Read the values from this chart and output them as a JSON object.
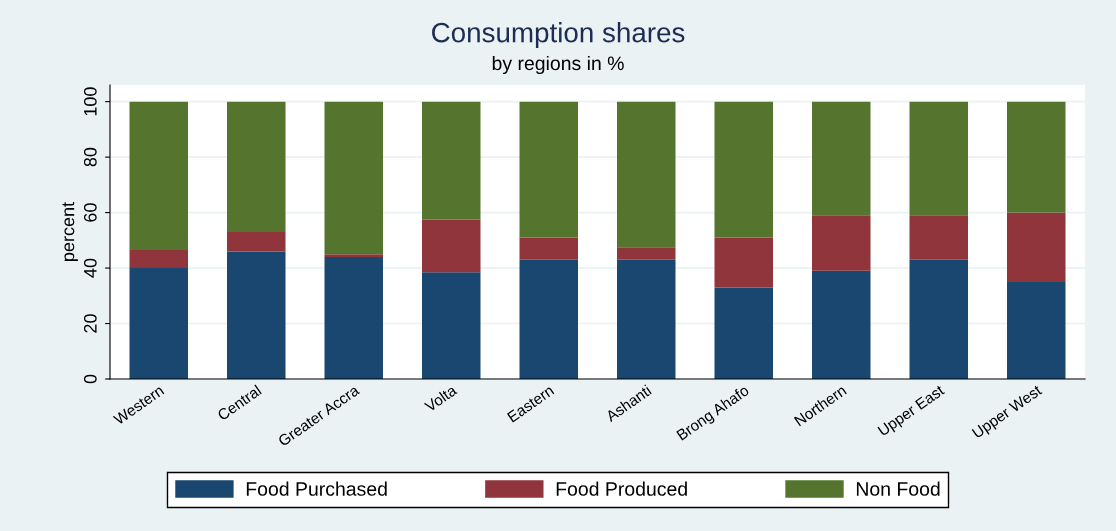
{
  "chart_data": {
    "type": "bar",
    "title": "Consumption shares",
    "subtitle": "by regions in %",
    "ylabel": "percent",
    "categories": [
      "Western",
      "Central",
      "Greater Accra",
      "Volta",
      "Eastern",
      "Ashanti",
      "Brong Ahafo",
      "Northern",
      "Upper East",
      "Upper West"
    ],
    "stacked": true,
    "series": [
      {
        "name": "Food Purchased",
        "color": "#1a476f",
        "values": [
          40,
          46,
          44,
          38.5,
          43,
          43,
          33,
          39,
          43,
          35
        ]
      },
      {
        "name": "Food Produced",
        "color": "#90353b",
        "values": [
          6.5,
          7,
          1,
          19,
          8,
          4.5,
          18,
          20,
          16,
          25
        ]
      },
      {
        "name": "Non Food",
        "color": "#55752f",
        "values": [
          53.5,
          47,
          55,
          42.5,
          49,
          52.5,
          49,
          41,
          41,
          40
        ]
      }
    ],
    "ylim": [
      0,
      106
    ],
    "yticks": [
      0,
      20,
      40,
      60,
      80,
      100
    ],
    "grid": "y",
    "legend": "bottom"
  }
}
